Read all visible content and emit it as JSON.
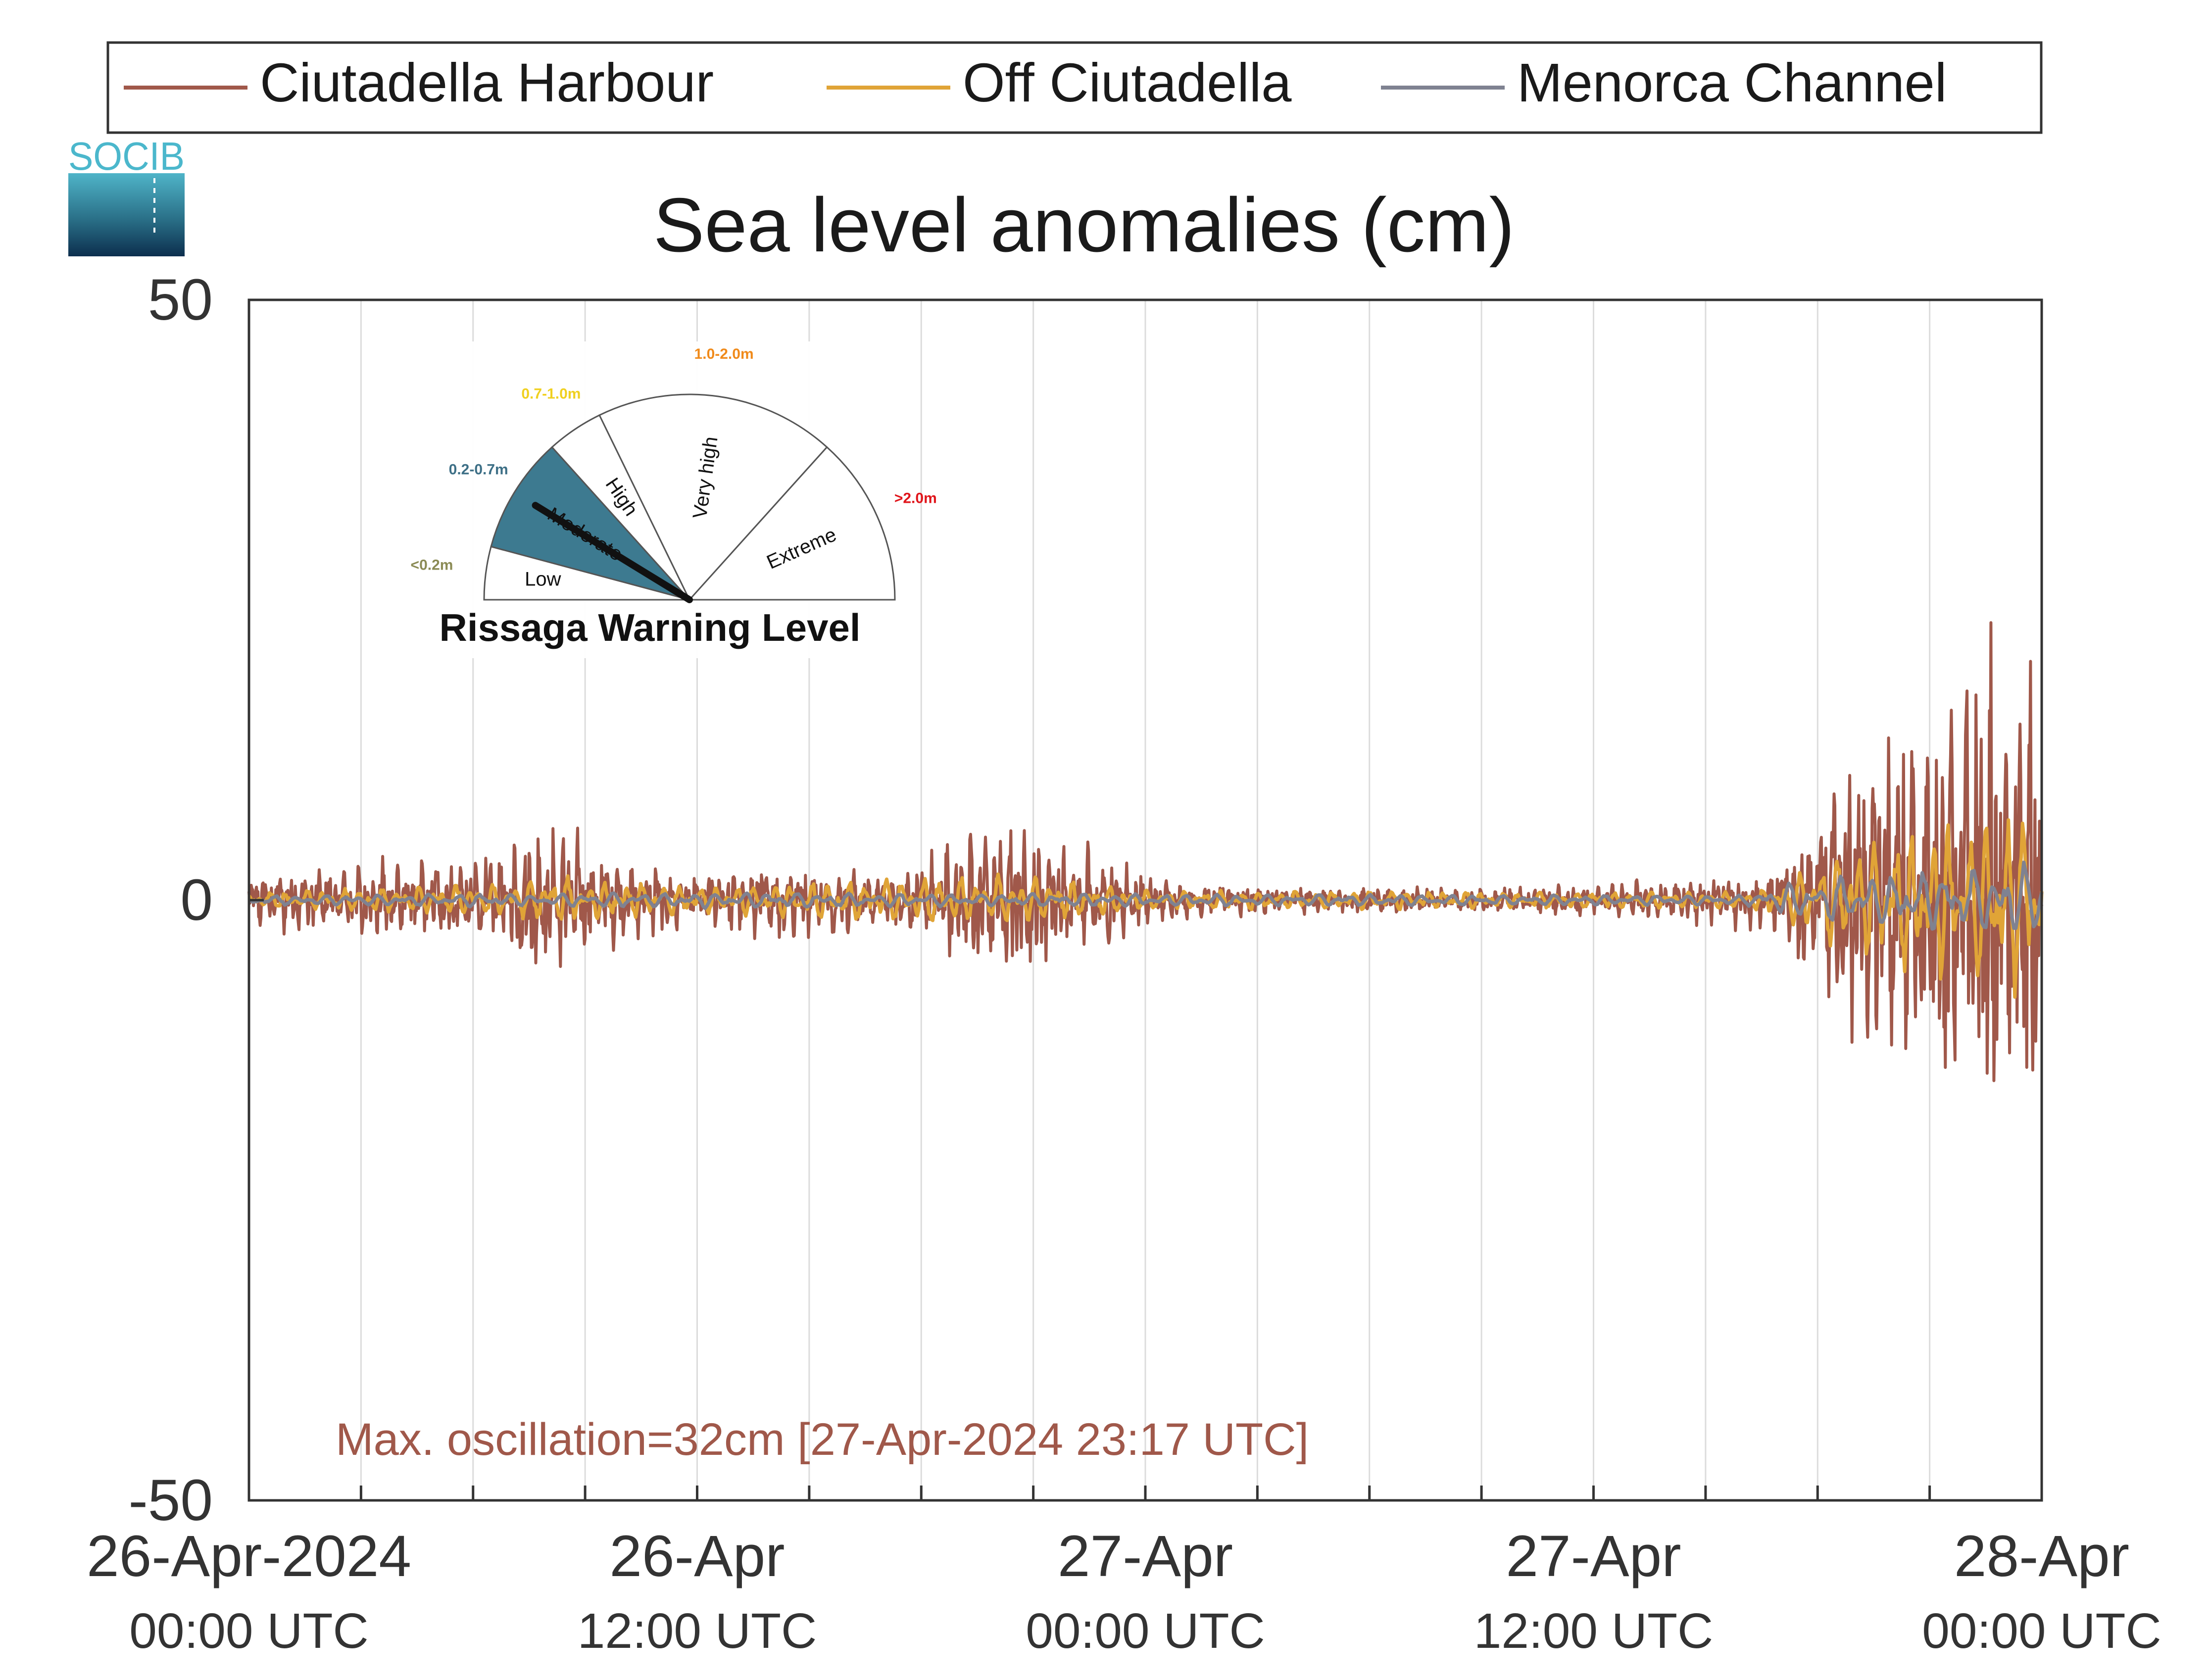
{
  "legend": {
    "items": [
      {
        "label": "Ciutadella Harbour",
        "color": "#a0584a"
      },
      {
        "label": "Off Ciutadella",
        "color": "#e0a437"
      },
      {
        "label": "Menorca Channel",
        "color": "#7f8291"
      }
    ]
  },
  "logo": {
    "text": "SOCIB"
  },
  "gauge": {
    "title": "Rissaga Warning Level",
    "current_level": "Moderate",
    "levels": [
      {
        "name": "Low",
        "range": "<0.2m",
        "range_color": "#8b8b55",
        "fill": "#ffffff"
      },
      {
        "name": "Moderate",
        "range": "0.2-0.7m",
        "range_color": "#3d6f86",
        "fill": "#3d7a90"
      },
      {
        "name": "High",
        "range": "0.7-1.0m",
        "range_color": "#f0d020",
        "fill": "#ffffff"
      },
      {
        "name": "Very high",
        "range": "1.0-2.0m",
        "range_color": "#f08a1a",
        "fill": "#ffffff"
      },
      {
        "name": "Extreme",
        "range": ">2.0m",
        "range_color": "#e0151b",
        "fill": "#ffffff"
      }
    ]
  },
  "annotation": {
    "text": "Max. oscillation=32cm [27-Apr-2024 23:17 UTC]",
    "color": "#a0584a"
  },
  "chart_data": {
    "type": "line",
    "title": "Sea level anomalies (cm)",
    "xlabel": "",
    "ylabel": "",
    "ylim": [
      -50,
      50
    ],
    "yticks": [
      -50,
      0,
      50
    ],
    "xlim_hours": [
      0,
      48
    ],
    "xticks": [
      {
        "hour": 0,
        "date": "26-Apr-2024",
        "time": "00:00 UTC"
      },
      {
        "hour": 12,
        "date": "26-Apr",
        "time": "12:00 UTC"
      },
      {
        "hour": 24,
        "date": "27-Apr",
        "time": "00:00 UTC"
      },
      {
        "hour": 36,
        "date": "27-Apr",
        "time": "12:00 UTC"
      },
      {
        "hour": 48,
        "date": "28-Apr",
        "time": "00:00 UTC"
      }
    ],
    "grid_hours": [
      3,
      6,
      9,
      12,
      15,
      18,
      21,
      24,
      27,
      30,
      33,
      36,
      39,
      42,
      45
    ],
    "grid": true,
    "legend_position": "top",
    "series": [
      {
        "name": "Ciutadella Harbour",
        "color": "#a0584a",
        "amplitude_envelope": [
          [
            0,
            1.5
          ],
          [
            2,
            2
          ],
          [
            4,
            2.5
          ],
          [
            6,
            2.5
          ],
          [
            7,
            3
          ],
          [
            7.5,
            5
          ],
          [
            8,
            4.5
          ],
          [
            9,
            3.5
          ],
          [
            10,
            2.5
          ],
          [
            11,
            2
          ],
          [
            12,
            1.5
          ],
          [
            13,
            2
          ],
          [
            14,
            2.5
          ],
          [
            15,
            2
          ],
          [
            16,
            2
          ],
          [
            17,
            1.5
          ],
          [
            18,
            2
          ],
          [
            19,
            4
          ],
          [
            20,
            5
          ],
          [
            21,
            4.5
          ],
          [
            22,
            3.5
          ],
          [
            23,
            2.5
          ],
          [
            24,
            1.5
          ],
          [
            25,
            1
          ],
          [
            26,
            1
          ],
          [
            28,
            0.8
          ],
          [
            30,
            0.8
          ],
          [
            32,
            0.7
          ],
          [
            34,
            0.8
          ],
          [
            36,
            1
          ],
          [
            38,
            1.2
          ],
          [
            40,
            1.5
          ],
          [
            41,
            2
          ],
          [
            41.5,
            4
          ],
          [
            42,
            6
          ],
          [
            43,
            8
          ],
          [
            44,
            10
          ],
          [
            45,
            12
          ],
          [
            46,
            13
          ],
          [
            47,
            15
          ],
          [
            48,
            16
          ]
        ]
      },
      {
        "name": "Off Ciutadella",
        "color": "#e0a437",
        "amplitude_envelope": [
          [
            0,
            0.5
          ],
          [
            7,
            1
          ],
          [
            8,
            1.5
          ],
          [
            12,
            0.8
          ],
          [
            19,
            1.5
          ],
          [
            21,
            1.5
          ],
          [
            24,
            0.6
          ],
          [
            40,
            0.5
          ],
          [
            41,
            1
          ],
          [
            42,
            2.5
          ],
          [
            44,
            4
          ],
          [
            46,
            5
          ],
          [
            48,
            6
          ]
        ]
      },
      {
        "name": "Menorca Channel",
        "color": "#7f8291",
        "amplitude_envelope": [
          [
            0,
            0.3
          ],
          [
            12,
            0.5
          ],
          [
            24,
            0.4
          ],
          [
            40,
            0.3
          ],
          [
            42,
            1.5
          ],
          [
            45,
            2
          ],
          [
            48,
            2.5
          ]
        ]
      }
    ],
    "annotation_peak": {
      "value_cm": 32,
      "time": "27-Apr-2024 23:17 UTC"
    }
  }
}
